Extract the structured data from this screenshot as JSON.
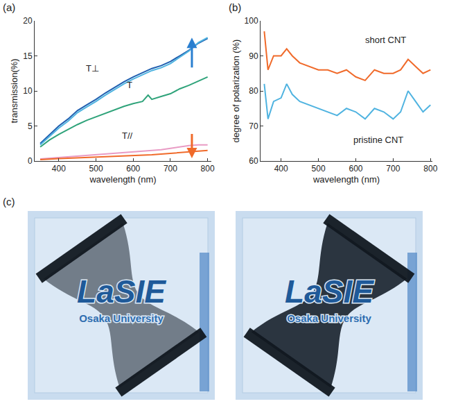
{
  "chart_data": [
    {
      "panel": "(a)",
      "type": "line",
      "x_label": "wavelength (nm)",
      "y_label": "transmission(%)",
      "grid": false,
      "x": [
        350,
        375,
        400,
        425,
        450,
        475,
        500,
        525,
        550,
        575,
        600,
        625,
        640,
        650,
        675,
        700,
        725,
        750,
        775,
        800
      ],
      "xlim": [
        335,
        810
      ],
      "xticks": [
        400,
        500,
        600,
        700,
        800
      ],
      "ylim": [
        0,
        20
      ],
      "yticks": [
        0,
        5,
        10,
        15,
        20
      ],
      "series": [
        {
          "color": "#1f5fb0",
          "values": [
            2.5,
            3.8,
            5.0,
            6.0,
            7.2,
            8.0,
            8.8,
            9.7,
            10.5,
            11.3,
            12.0,
            12.6,
            12.9,
            13.2,
            13.6,
            14.2,
            15.0,
            15.8,
            16.8,
            17.5
          ]
        },
        {
          "color": "#4fb3e0",
          "values": [
            2.3,
            3.5,
            4.7,
            5.7,
            6.9,
            7.7,
            8.5,
            9.4,
            10.2,
            11.0,
            11.7,
            12.3,
            12.6,
            12.9,
            13.3,
            13.9,
            14.8,
            15.7,
            16.9,
            17.6
          ]
        },
        {
          "color": "#2fa37a",
          "values": [
            2.0,
            3.0,
            3.8,
            4.5,
            5.2,
            5.8,
            6.3,
            6.8,
            7.3,
            7.8,
            8.2,
            8.5,
            9.4,
            8.8,
            9.2,
            9.6,
            10.3,
            10.8,
            11.4,
            12.0
          ]
        },
        {
          "color": "#e99bc4",
          "values": [
            0.3,
            0.4,
            0.5,
            0.6,
            0.7,
            0.8,
            0.9,
            1.0,
            1.1,
            1.2,
            1.3,
            1.4,
            1.45,
            1.5,
            1.6,
            1.8,
            2.0,
            2.2,
            2.3,
            2.3
          ]
        },
        {
          "color": "#f06a2a",
          "values": [
            0.2,
            0.3,
            0.35,
            0.4,
            0.45,
            0.5,
            0.55,
            0.6,
            0.65,
            0.7,
            0.75,
            0.8,
            0.85,
            0.9,
            1.0,
            1.1,
            1.2,
            1.3,
            1.4,
            1.5
          ]
        }
      ],
      "annotations": [
        {
          "text": "T⊥",
          "x": 490,
          "y": 13.2
        },
        {
          "text": "T",
          "x": 590,
          "y": 10.8
        },
        {
          "text": "T//",
          "x": 585,
          "y": 3.6
        }
      ]
    },
    {
      "panel": "(b)",
      "type": "line",
      "x_label": "wavelength (nm)",
      "y_label": "degree of polarization (%)",
      "grid": false,
      "x": [
        355,
        365,
        380,
        400,
        415,
        430,
        450,
        475,
        500,
        525,
        550,
        575,
        600,
        625,
        650,
        675,
        700,
        720,
        740,
        760,
        780,
        800
      ],
      "xlim": [
        345,
        805
      ],
      "xticks": [
        400,
        500,
        600,
        700,
        800
      ],
      "ylim": [
        60,
        100
      ],
      "yticks": [
        60,
        70,
        80,
        90,
        100
      ],
      "series": [
        {
          "color": "#f06a2a",
          "values": [
            97,
            86,
            90,
            90,
            92,
            90,
            88,
            87,
            86,
            86,
            85,
            86,
            84,
            83,
            86,
            85,
            85,
            86,
            89,
            87,
            85,
            86
          ]
        },
        {
          "color": "#4fb3e0",
          "values": [
            82,
            72,
            77,
            78,
            82,
            79,
            77,
            76,
            75,
            74,
            73,
            75,
            74,
            72,
            75,
            74,
            72,
            74,
            80,
            77,
            74,
            76
          ]
        }
      ],
      "annotations": [
        {
          "text": "short CNT",
          "x": 680,
          "y": 94.5
        },
        {
          "text": "pristine CNT",
          "x": 660,
          "y": 66
        }
      ]
    }
  ],
  "photos": {
    "panel": "(c)",
    "texts": [
      "LaSIE",
      "Osaka University"
    ]
  }
}
